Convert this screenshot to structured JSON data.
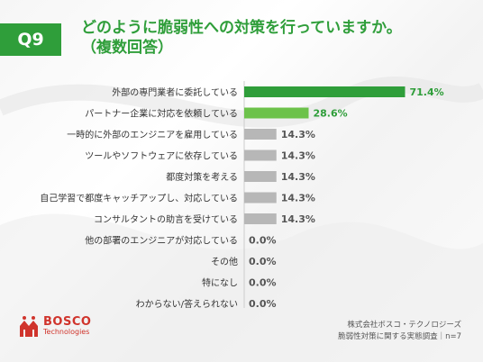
{
  "header": {
    "badge": "Q9",
    "title_line1": "どのように脆弱性への対策を行っていますか。",
    "title_line2": "（複数回答）"
  },
  "colors": {
    "accent": "#2f9e3a",
    "accent_light": "#6cc24a",
    "gray_bar": "#b7b7b7",
    "brand_red": "#d0342c"
  },
  "chart_data": {
    "type": "bar",
    "orientation": "horizontal",
    "categories": [
      "外部の専門業者に委託している",
      "パートナー企業に対応を依頼している",
      "一時的に外部のエンジニアを雇用している",
      "ツールやソフトウェアに依存している",
      "都度対策を考える",
      "自己学習で都度キャッチアップし、対応している",
      "コンサルタントの助言を受けている",
      "他の部署のエンジニアが対応している",
      "その他",
      "特になし",
      "わからない/答えられない"
    ],
    "values": [
      71.4,
      28.6,
      14.3,
      14.3,
      14.3,
      14.3,
      14.3,
      0.0,
      0.0,
      0.0,
      0.0
    ],
    "labels": [
      "71.4%",
      "28.6%",
      "14.3%",
      "14.3%",
      "14.3%",
      "14.3%",
      "14.3%",
      "0.0%",
      "0.0%",
      "0.0%",
      "0.0%"
    ],
    "xlim": [
      0,
      100
    ]
  },
  "logo": {
    "name": "BOSCO",
    "sub": "Technologies"
  },
  "footer": {
    "line1": "株式会社ボスコ・テクノロジーズ",
    "line2": "脆弱性対策に関する実態調査｜n=7"
  }
}
